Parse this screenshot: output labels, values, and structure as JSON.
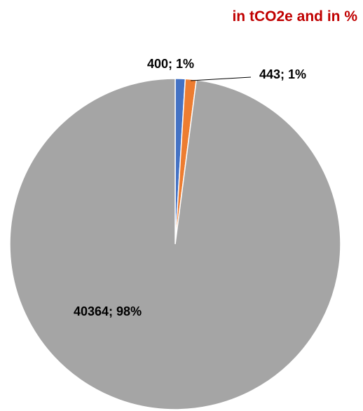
{
  "title_color": "#c00000",
  "chart_data": {
    "type": "pie",
    "title": "in tCO2e and in %",
    "values": [
      400,
      443,
      40364
    ],
    "percent_labels": [
      "1%",
      "1%",
      "98%"
    ],
    "data_labels": [
      "400; 1%",
      "443; 1%",
      "40364; 98%"
    ],
    "colors": [
      "#4472c4",
      "#ed7d31",
      "#a5a5a5"
    ],
    "legend": "none"
  }
}
